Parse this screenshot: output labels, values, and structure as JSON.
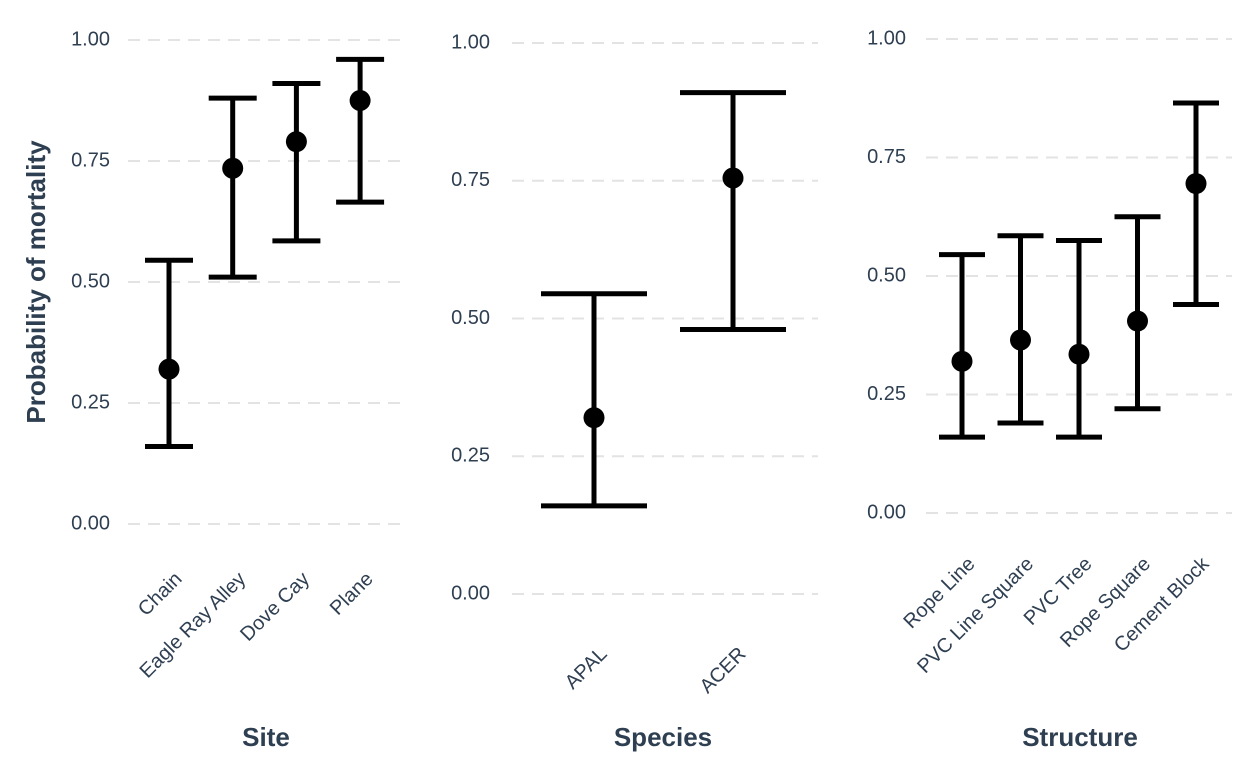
{
  "y_axis_label": "Probability of mortality",
  "colors": {
    "text": "#2f3f52",
    "grid": "#e3e3e3",
    "mark": "#000000"
  },
  "chart_data": [
    {
      "type": "errorbar",
      "xlabel": "Site",
      "ylabel": "Probability of mortality",
      "ylim": [
        0,
        1
      ],
      "yticks": [
        "0.00",
        "0.25",
        "0.50",
        "0.75",
        "1.00"
      ],
      "grid": "horizontal-dashed",
      "categories": [
        "Chain",
        "Eagle Ray Alley",
        "Dove Cay",
        "Plane"
      ],
      "estimates": [
        0.32,
        0.735,
        0.79,
        0.875
      ],
      "lower": [
        0.16,
        0.51,
        0.585,
        0.665
      ],
      "upper": [
        0.545,
        0.88,
        0.91,
        0.96
      ]
    },
    {
      "type": "errorbar",
      "xlabel": "Species",
      "ylabel": "",
      "ylim": [
        0,
        1
      ],
      "yticks": [
        "0.00",
        "0.25",
        "0.50",
        "0.75",
        "1.00"
      ],
      "grid": "horizontal-dashed",
      "categories": [
        "APAL",
        "ACER"
      ],
      "estimates": [
        0.32,
        0.755
      ],
      "lower": [
        0.16,
        0.48
      ],
      "upper": [
        0.545,
        0.91
      ]
    },
    {
      "type": "errorbar",
      "xlabel": "Structure",
      "ylabel": "",
      "ylim": [
        0,
        1
      ],
      "yticks": [
        "0.00",
        "0.25",
        "0.50",
        "0.75",
        "1.00"
      ],
      "grid": "horizontal-dashed",
      "categories": [
        "Rope Line",
        "PVC Line Square",
        "PVC Tree",
        "Rope Square",
        "Cement Block"
      ],
      "estimates": [
        0.32,
        0.365,
        0.335,
        0.405,
        0.695
      ],
      "lower": [
        0.16,
        0.19,
        0.16,
        0.22,
        0.44
      ],
      "upper": [
        0.545,
        0.585,
        0.575,
        0.625,
        0.865
      ]
    }
  ]
}
